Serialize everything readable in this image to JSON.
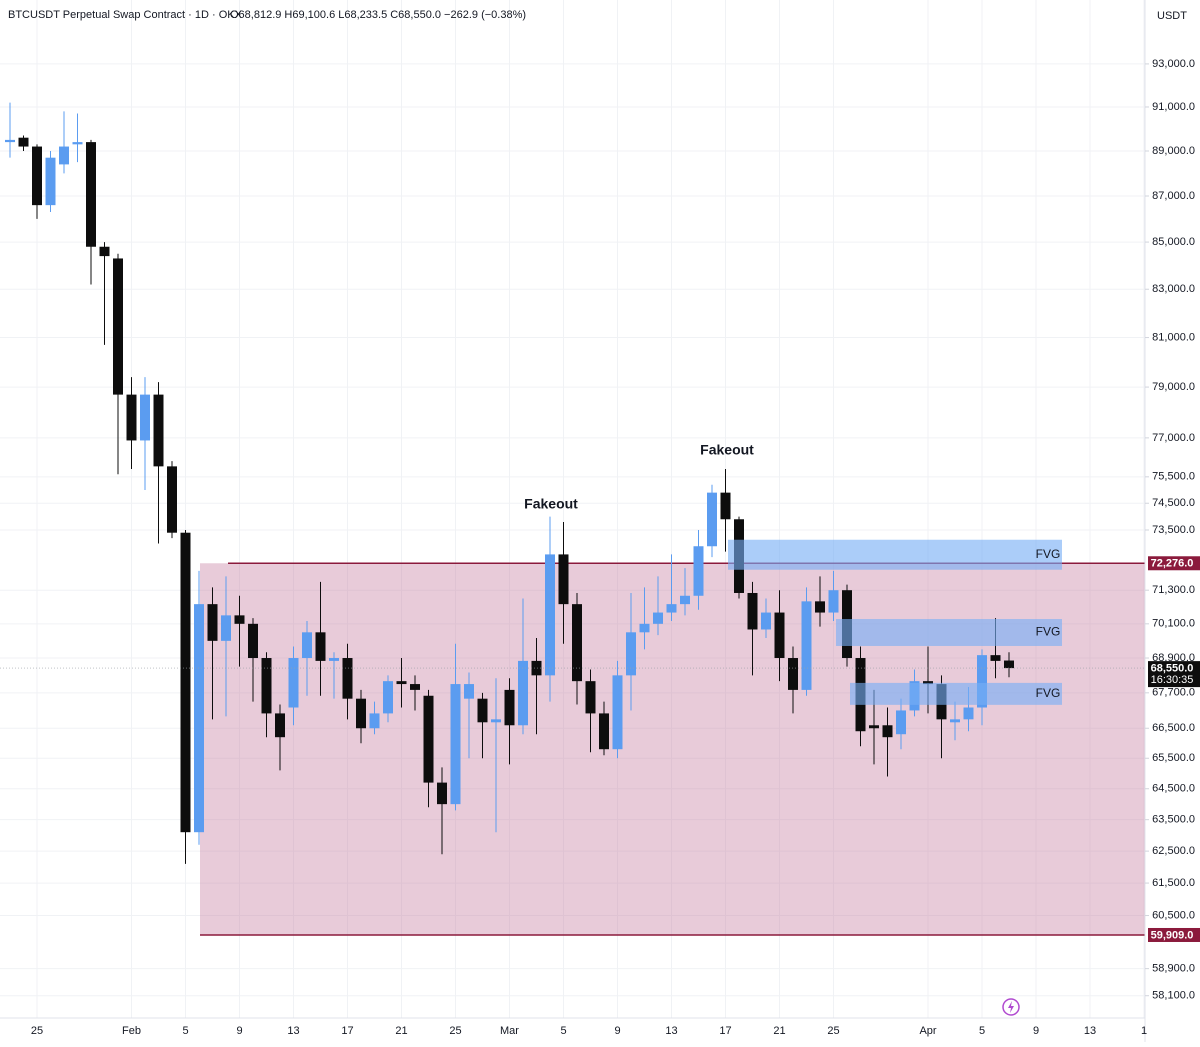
{
  "chart_data": {
    "type": "candlestick",
    "title": "BTCUSDT Perpetual Swap Contract · 1D · OKX",
    "ohlc_text": "O68,812.9  H69,100.6  L68,233.5  C68,550.0  −262.9 (−0.38%)",
    "currency": "USDT",
    "log_scale": true,
    "up_color": "#5b9cf0",
    "down_color": "#0d0d0d",
    "categories": [
      null,
      null,
      "25",
      null,
      null,
      null,
      null,
      null,
      null,
      "Feb",
      null,
      null,
      null,
      "5",
      null,
      null,
      null,
      "9",
      null,
      null,
      null,
      "13",
      null,
      null,
      null,
      "17",
      null,
      null,
      null,
      "21",
      null,
      null,
      null,
      "25",
      null,
      null,
      null,
      "Mar",
      null,
      null,
      null,
      "5",
      null,
      null,
      null,
      "9",
      null,
      null,
      null,
      "13",
      null,
      null,
      null,
      "17",
      null,
      null,
      null,
      "21",
      null,
      null,
      null,
      "25",
      null,
      null,
      null,
      null,
      null,
      null,
      "Apr",
      null,
      null,
      null,
      "5",
      null,
      null,
      null,
      "9",
      null,
      null,
      null,
      "13",
      null,
      null,
      null,
      "1"
    ],
    "open": [
      89400,
      89600,
      89200,
      86600,
      88400,
      89300,
      89400,
      84800,
      84300,
      78700,
      76900,
      78700,
      75900,
      73400,
      63100,
      70800,
      69500,
      70400,
      70100,
      68900,
      67000,
      67200,
      68900,
      69800,
      68800,
      68900,
      67500,
      66500,
      67000,
      68100,
      68000,
      67600,
      64700,
      64000,
      67500,
      67500,
      66700,
      67800,
      66600,
      68800,
      68300,
      72600,
      70800,
      68100,
      67000,
      65800,
      68300,
      69800,
      70100,
      70500,
      70800,
      71100,
      72900,
      74900,
      73900,
      71200,
      69900,
      70500,
      68900,
      67800,
      70900,
      70500,
      71300,
      68900,
      66600,
      66600,
      66300,
      67100,
      68100,
      68000,
      66700,
      66800,
      67200,
      69000,
      68812.9,
      null,
      null,
      null,
      null,
      null,
      null,
      null,
      null,
      null,
      null
    ],
    "high": [
      91200,
      89700,
      89300,
      89000,
      90800,
      90700,
      89500,
      85000,
      84500,
      79400,
      79400,
      79200,
      76100,
      73500,
      72000,
      71400,
      71800,
      71100,
      70300,
      69100,
      67300,
      69300,
      70200,
      71600,
      69100,
      69400,
      67800,
      67400,
      68300,
      68900,
      68300,
      67800,
      65200,
      69400,
      68400,
      67700,
      68200,
      68200,
      71000,
      69600,
      74000,
      73800,
      71200,
      68500,
      67400,
      68800,
      71200,
      71400,
      71800,
      72600,
      72100,
      73500,
      75200,
      75800,
      74000,
      71600,
      71000,
      71300,
      69300,
      71400,
      71800,
      72000,
      71500,
      69300,
      67800,
      67200,
      67500,
      68500,
      69300,
      68300,
      67400,
      67900,
      69200,
      70300,
      69100.6,
      null,
      null,
      null,
      null,
      null,
      null,
      null,
      null,
      null,
      null
    ],
    "low": [
      88700,
      89000,
      86000,
      86300,
      88000,
      88500,
      83200,
      80700,
      75600,
      75800,
      75000,
      73000,
      73200,
      62100,
      62700,
      66800,
      66900,
      68600,
      67400,
      66200,
      65100,
      66600,
      67600,
      67600,
      67500,
      66800,
      66000,
      66300,
      66700,
      67200,
      67100,
      63900,
      62400,
      63800,
      65500,
      65500,
      63100,
      65300,
      66300,
      66300,
      67400,
      69400,
      67300,
      65700,
      65600,
      65500,
      67100,
      69200,
      69700,
      70200,
      70400,
      70600,
      72500,
      72700,
      71000,
      68300,
      69600,
      68100,
      67000,
      67600,
      70000,
      70200,
      68600,
      65900,
      65300,
      64900,
      65800,
      66900,
      67000,
      65500,
      66100,
      66400,
      66600,
      68200,
      68233.5,
      null,
      null,
      null,
      null,
      null,
      null,
      null,
      null,
      null,
      null
    ],
    "close": [
      89500,
      89200,
      86600,
      88700,
      89200,
      89400,
      84800,
      84400,
      78700,
      76900,
      78700,
      75900,
      73400,
      63100,
      70800,
      69500,
      70400,
      70100,
      68900,
      67000,
      66200,
      68900,
      69800,
      68800,
      68900,
      67500,
      66500,
      67000,
      68100,
      68000,
      67800,
      64700,
      64000,
      68000,
      68000,
      66700,
      66800,
      66600,
      68800,
      68300,
      72600,
      70800,
      68100,
      67000,
      65800,
      68300,
      69800,
      70100,
      70500,
      70800,
      71100,
      72900,
      74900,
      73900,
      71200,
      69900,
      70500,
      68900,
      67800,
      70900,
      70500,
      71300,
      68900,
      66400,
      66500,
      66200,
      67100,
      68100,
      68000,
      66800,
      66800,
      67200,
      69000,
      68800,
      68550,
      null,
      null,
      null,
      null,
      null,
      null,
      null,
      null,
      null,
      null
    ],
    "ylim": [
      57450,
      96050
    ],
    "yticks": [
      {
        "value": 93000,
        "label": "93,000.0"
      },
      {
        "value": 91000,
        "label": "91,000.0"
      },
      {
        "value": 89000,
        "label": "89,000.0"
      },
      {
        "value": 87000,
        "label": "87,000.0"
      },
      {
        "value": 85000,
        "label": "85,000.0"
      },
      {
        "value": 83000,
        "label": "83,000.0"
      },
      {
        "value": 81000,
        "label": "81,000.0"
      },
      {
        "value": 79000,
        "label": "79,000.0"
      },
      {
        "value": 77000,
        "label": "77,000.0"
      },
      {
        "value": 75500,
        "label": "75,500.0"
      },
      {
        "value": 74500,
        "label": "74,500.0"
      },
      {
        "value": 73500,
        "label": "73,500.0"
      },
      {
        "value": 71300,
        "label": "71,300.0"
      },
      {
        "value": 70100,
        "label": "70,100.0"
      },
      {
        "value": 68900,
        "label": "68,900.0"
      },
      {
        "value": 67700,
        "label": "67,700.0"
      },
      {
        "value": 66500,
        "label": "66,500.0"
      },
      {
        "value": 65500,
        "label": "65,500.0"
      },
      {
        "value": 64500,
        "label": "64,500.0"
      },
      {
        "value": 63500,
        "label": "63,500.0"
      },
      {
        "value": 62500,
        "label": "62,500.0"
      },
      {
        "value": 61500,
        "label": "61,500.0"
      },
      {
        "value": 60500,
        "label": "60,500.0"
      },
      {
        "value": 58900,
        "label": "58,900.0"
      },
      {
        "value": 58100,
        "label": "58,100.0"
      }
    ],
    "grid": true,
    "range_levels": [
      {
        "value": 72276,
        "label": "72,276.0"
      },
      {
        "value": 59909,
        "label": "59,909.0"
      }
    ],
    "last_price": {
      "value": 68550,
      "label": "68,550.0"
    },
    "countdown": "16:30:35",
    "zones": [
      {
        "label": "FVG",
        "low": 72040,
        "high": 73140
      },
      {
        "label": "FVG",
        "low": 69320,
        "high": 70270
      },
      {
        "label": "FVG",
        "low": 67290,
        "high": 68040
      }
    ],
    "annotations": [
      "Fakeout",
      "Fakeout"
    ]
  }
}
